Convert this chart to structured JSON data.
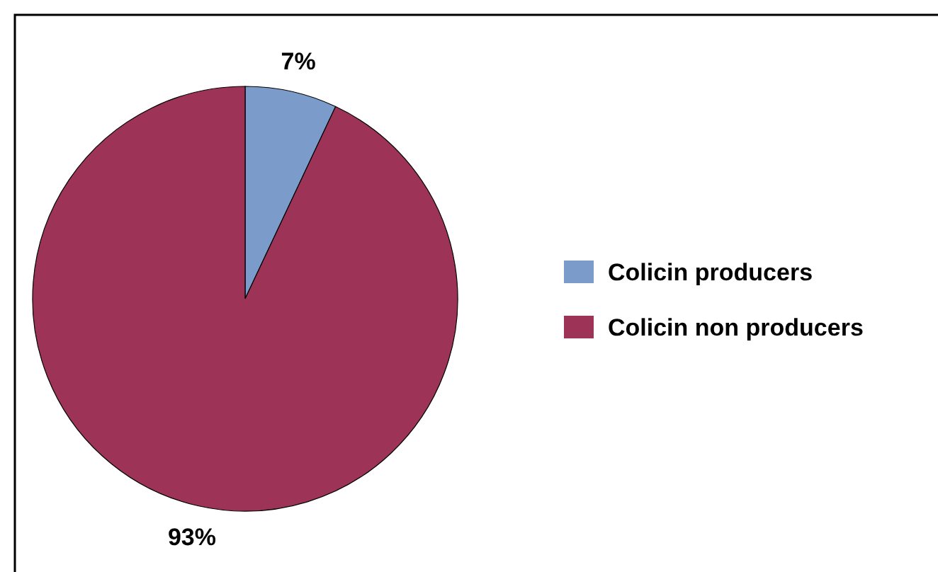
{
  "chart_data": {
    "type": "pie",
    "categories": [
      "Colicin producers",
      "Colicin non producers"
    ],
    "values": [
      7,
      93
    ],
    "colors": [
      "#7b9bcb",
      "#9e3358"
    ],
    "value_labels": [
      "7%",
      "93%"
    ],
    "legend": "right"
  }
}
